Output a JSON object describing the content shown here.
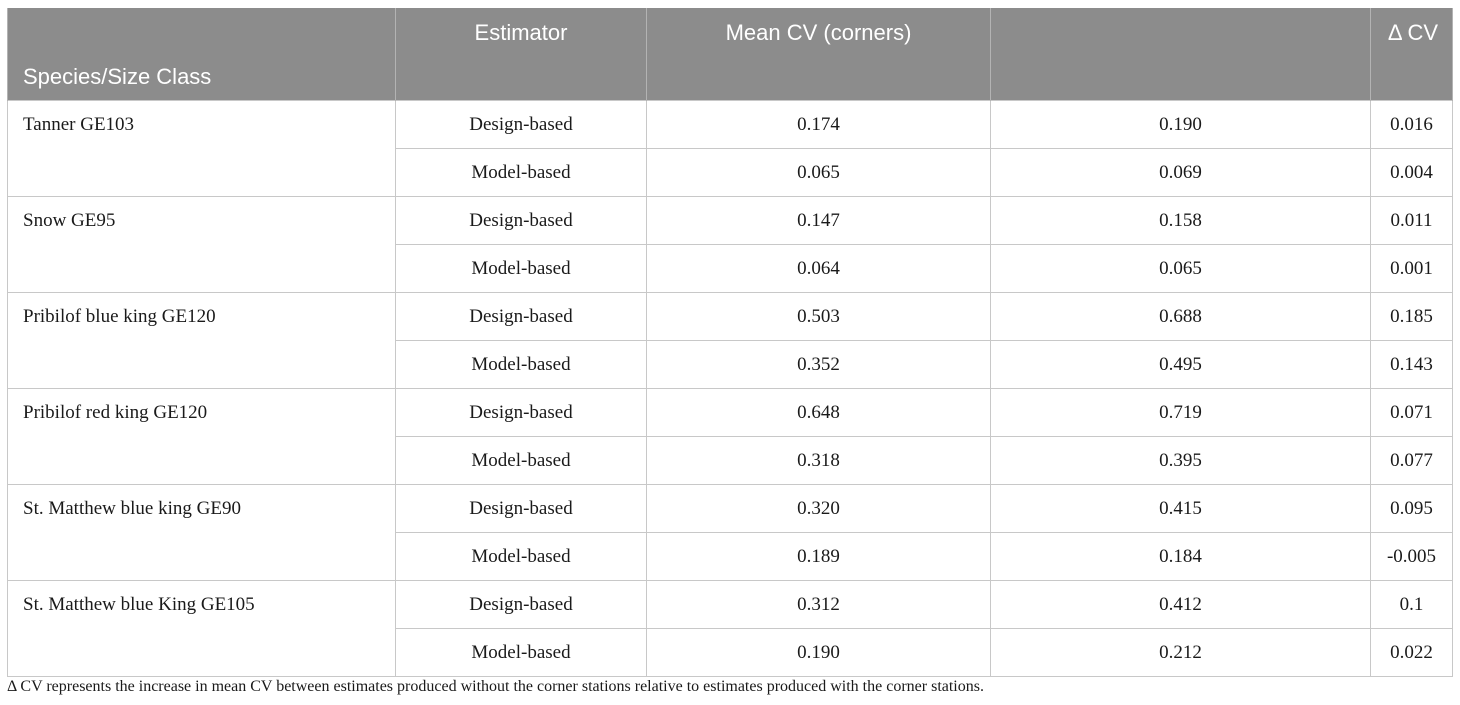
{
  "table": {
    "headers": {
      "species": "Species/Size Class",
      "estimator": "Estimator",
      "mean_cv": "Mean CV (corners)",
      "col4": "",
      "delta_cv": "Δ CV"
    },
    "rows": [
      {
        "species": "Tanner GE103",
        "estimator": "Design-based",
        "mean_cv": "0.174",
        "col4": "0.190",
        "delta_cv": "0.016"
      },
      {
        "species": "",
        "estimator": "Model-based",
        "mean_cv": "0.065",
        "col4": "0.069",
        "delta_cv": "0.004"
      },
      {
        "species": "Snow GE95",
        "estimator": "Design-based",
        "mean_cv": "0.147",
        "col4": "0.158",
        "delta_cv": "0.011"
      },
      {
        "species": "",
        "estimator": "Model-based",
        "mean_cv": "0.064",
        "col4": "0.065",
        "delta_cv": "0.001"
      },
      {
        "species": "Pribilof blue king GE120",
        "estimator": "Design-based",
        "mean_cv": "0.503",
        "col4": "0.688",
        "delta_cv": "0.185"
      },
      {
        "species": "",
        "estimator": "Model-based",
        "mean_cv": "0.352",
        "col4": "0.495",
        "delta_cv": "0.143"
      },
      {
        "species": "Pribilof red king GE120",
        "estimator": "Design-based",
        "mean_cv": "0.648",
        "col4": "0.719",
        "delta_cv": "0.071"
      },
      {
        "species": "",
        "estimator": "Model-based",
        "mean_cv": "0.318",
        "col4": "0.395",
        "delta_cv": "0.077"
      },
      {
        "species": "St. Matthew blue king GE90",
        "estimator": "Design-based",
        "mean_cv": "0.320",
        "col4": "0.415",
        "delta_cv": "0.095"
      },
      {
        "species": "",
        "estimator": "Model-based",
        "mean_cv": "0.189",
        "col4": "0.184",
        "delta_cv": "-0.005"
      },
      {
        "species": "St. Matthew blue King GE105",
        "estimator": "Design-based",
        "mean_cv": "0.312",
        "col4": "0.412",
        "delta_cv": "0.1"
      },
      {
        "species": "",
        "estimator": "Model-based",
        "mean_cv": "0.190",
        "col4": "0.212",
        "delta_cv": "0.022"
      }
    ]
  },
  "footnote": "Δ CV represents the increase in mean CV between estimates produced without the corner stations relative to estimates produced with the corner stations.",
  "colors": {
    "header_bg": "#8c8c8c",
    "header_text": "#ffffff",
    "grid": "#c8c8c8"
  }
}
